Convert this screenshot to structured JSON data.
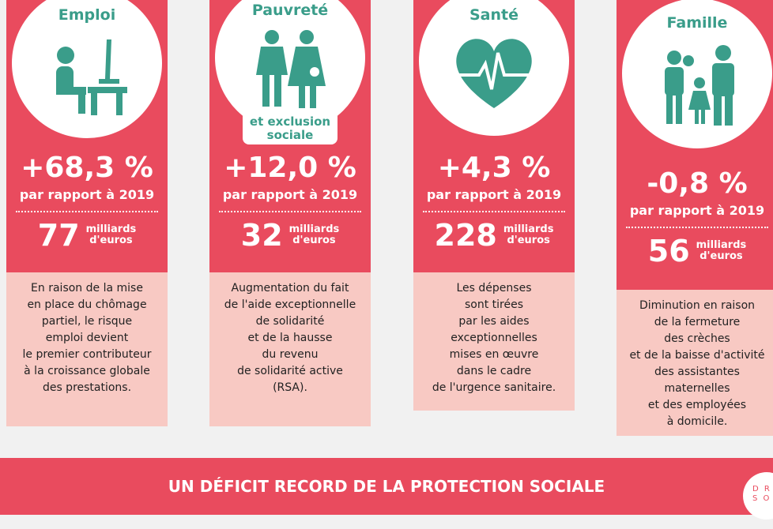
{
  "cards": [
    {
      "title": "Emploi",
      "change": "+68,3 %",
      "comparison": "par rapport à 2019",
      "amount": "77",
      "unit": [
        "milliards",
        "d'euros"
      ],
      "description": [
        "En raison de la mise",
        "en place du chômage",
        "partiel, le risque",
        "emploi devient",
        "le premier contributeur",
        "à la croissance globale",
        "des prestations."
      ]
    },
    {
      "title": "Pauvreté",
      "subtitle": [
        "et exclusion",
        "sociale"
      ],
      "change": "+12,0 %",
      "comparison": "par rapport à 2019",
      "amount": "32",
      "unit": [
        "milliards",
        "d'euros"
      ],
      "description": [
        "Augmentation du fait",
        "de l'aide exceptionnelle",
        "de solidarité",
        "et de la hausse",
        "du revenu",
        "de solidarité active",
        "(RSA)."
      ]
    },
    {
      "title": "Santé",
      "change": "+4,3 %",
      "comparison": "par rapport à 2019",
      "amount": "228",
      "unit": [
        "milliards",
        "d'euros"
      ],
      "description": [
        "Les dépenses",
        "sont tirées",
        "par les aides",
        "exceptionnelles",
        "mises en œuvre",
        "dans le cadre",
        "de l'urgence sanitaire."
      ]
    },
    {
      "title": "Famille",
      "change": "-0,8 %",
      "comparison": "par rapport à 2019",
      "amount": "56",
      "unit": [
        "milliards",
        "d'euros"
      ],
      "description": [
        "Diminution en raison",
        "de la fermeture",
        "des crèches",
        "et de la baisse d'activité",
        "des assistantes",
        "maternelles",
        "et des employées",
        "à domicile."
      ]
    }
  ],
  "banner": {
    "title": "UN DÉFICIT RECORD DE LA PROTECTION SOCIALE",
    "logo": [
      "D R",
      "S O"
    ]
  }
}
